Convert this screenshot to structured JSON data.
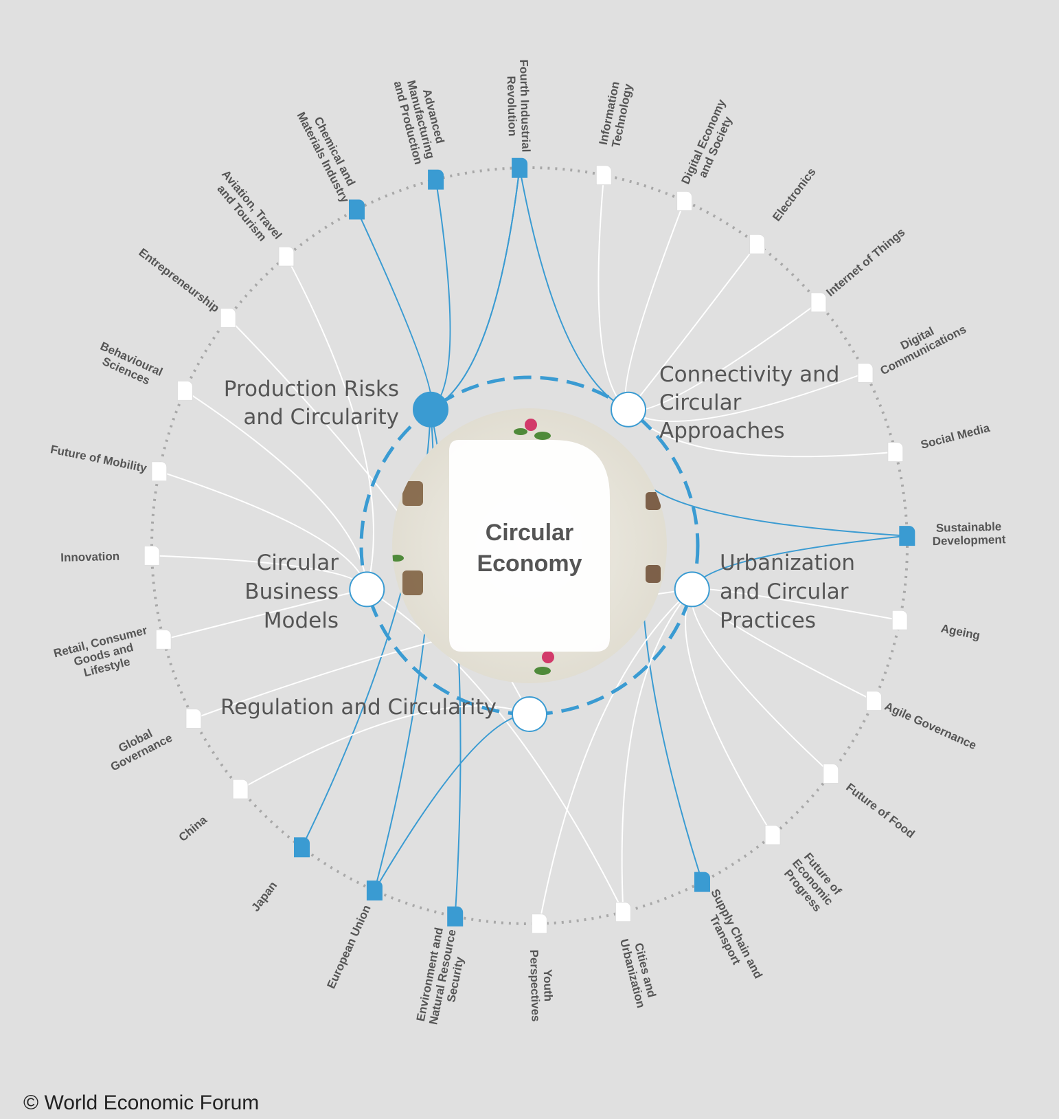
{
  "center": {
    "title_line1": "Circular",
    "title_line2": "Economy"
  },
  "hubs": [
    {
      "id": "production",
      "lines": [
        "Production Risks",
        "and Circularity"
      ],
      "filled": true
    },
    {
      "id": "connectivity",
      "lines": [
        "Connectivity and",
        "Circular",
        "Approaches"
      ],
      "filled": false
    },
    {
      "id": "business",
      "lines": [
        "Circular",
        "Business",
        "Models"
      ],
      "filled": false
    },
    {
      "id": "urbanization",
      "lines": [
        "Urbanization",
        "and Circular",
        "Practices"
      ],
      "filled": false
    },
    {
      "id": "regulation",
      "lines": [
        "Regulation and Circularity"
      ],
      "filled": false
    }
  ],
  "nodes": [
    {
      "lines": [
        "Fourth Industrial",
        "Revolution"
      ],
      "highlighted": true
    },
    {
      "lines": [
        "Information",
        "Technology"
      ],
      "highlighted": false
    },
    {
      "lines": [
        "Digital Economy",
        "and Society"
      ],
      "highlighted": false
    },
    {
      "lines": [
        "Electronics"
      ],
      "highlighted": false
    },
    {
      "lines": [
        "Internet of Things"
      ],
      "highlighted": false
    },
    {
      "lines": [
        "Digital",
        "Communications"
      ],
      "highlighted": false
    },
    {
      "lines": [
        "Social Media"
      ],
      "highlighted": false
    },
    {
      "lines": [
        "Sustainable",
        "Development"
      ],
      "highlighted": true
    },
    {
      "lines": [
        "Ageing"
      ],
      "highlighted": false
    },
    {
      "lines": [
        "Agile Governance"
      ],
      "highlighted": false
    },
    {
      "lines": [
        "Future of Food"
      ],
      "highlighted": false
    },
    {
      "lines": [
        "Future of",
        "Economic",
        "Progress"
      ],
      "highlighted": false
    },
    {
      "lines": [
        "Supply Chain and",
        "Transport"
      ],
      "highlighted": true
    },
    {
      "lines": [
        "Cities and",
        "Urbanization"
      ],
      "highlighted": false
    },
    {
      "lines": [
        "Youth",
        "Perspectives"
      ],
      "highlighted": false
    },
    {
      "lines": [
        "Environment and",
        "Natural Resource",
        "Security"
      ],
      "highlighted": true
    },
    {
      "lines": [
        "European Union"
      ],
      "highlighted": true
    },
    {
      "lines": [
        "Japan"
      ],
      "highlighted": true
    },
    {
      "lines": [
        "China"
      ],
      "highlighted": false
    },
    {
      "lines": [
        "Global",
        "Governance"
      ],
      "highlighted": false
    },
    {
      "lines": [
        "Retail, Consumer",
        "Goods and",
        "Lifestyle"
      ],
      "highlighted": false
    },
    {
      "lines": [
        "Innovation"
      ],
      "highlighted": false
    },
    {
      "lines": [
        "Future of Mobility"
      ],
      "highlighted": false
    },
    {
      "lines": [
        "Behavioural",
        "Sciences"
      ],
      "highlighted": false
    },
    {
      "lines": [
        "Entrepreneurship"
      ],
      "highlighted": false
    },
    {
      "lines": [
        "Aviation, Travel",
        "and Tourism"
      ],
      "highlighted": false
    },
    {
      "lines": [
        "Chemical and",
        "Materials Industry"
      ],
      "highlighted": true
    },
    {
      "lines": [
        "Advanced",
        "Manufacturing",
        "and Production"
      ],
      "highlighted": true
    }
  ],
  "links": [
    [
      0,
      "production"
    ],
    [
      0,
      "connectivity"
    ],
    [
      1,
      "connectivity"
    ],
    [
      2,
      "connectivity"
    ],
    [
      3,
      "connectivity"
    ],
    [
      4,
      "connectivity"
    ],
    [
      5,
      "connectivity"
    ],
    [
      6,
      "connectivity"
    ],
    [
      7,
      "center"
    ],
    [
      7,
      "urbanization"
    ],
    [
      8,
      "urbanization"
    ],
    [
      9,
      "urbanization"
    ],
    [
      10,
      "urbanization"
    ],
    [
      11,
      "urbanization"
    ],
    [
      12,
      "center"
    ],
    [
      13,
      "urbanization"
    ],
    [
      13,
      "business"
    ],
    [
      14,
      "urbanization"
    ],
    [
      15,
      "production"
    ],
    [
      16,
      "production"
    ],
    [
      16,
      "regulation"
    ],
    [
      17,
      "production"
    ],
    [
      18,
      "regulation"
    ],
    [
      19,
      "urbanization"
    ],
    [
      20,
      "business"
    ],
    [
      21,
      "business"
    ],
    [
      22,
      "business"
    ],
    [
      23,
      "business"
    ],
    [
      24,
      "regulation"
    ],
    [
      25,
      "business"
    ],
    [
      26,
      "production"
    ],
    [
      27,
      "production"
    ],
    [
      0,
      "production"
    ]
  ],
  "colors": {
    "accent": "#3a9bd2",
    "link": "#ffffff",
    "background": "#e0e0e0",
    "text": "#555555",
    "ring": "#a8a8a8"
  },
  "footer": {
    "copyright": "© World Economic Forum"
  }
}
